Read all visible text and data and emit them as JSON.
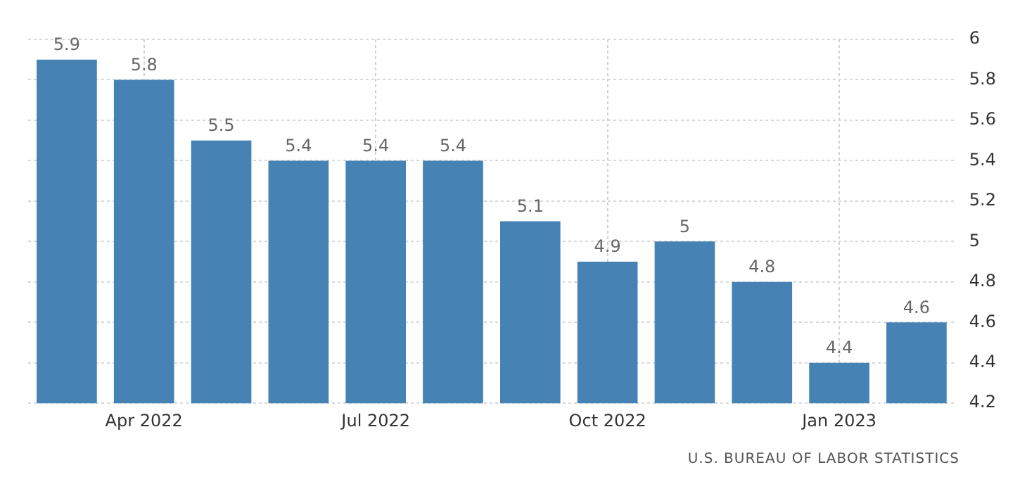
{
  "chart_data": {
    "type": "bar",
    "categories": [
      null,
      "Apr 2022",
      null,
      null,
      "Jul 2022",
      null,
      null,
      "Oct 2022",
      null,
      null,
      "Jan 2023",
      null
    ],
    "values": [
      5.9,
      5.8,
      5.5,
      5.4,
      5.4,
      5.4,
      5.1,
      4.9,
      5,
      4.8,
      4.4,
      4.6
    ],
    "color": "#4682b4",
    "ylim": [
      4.2,
      6
    ],
    "yticks": [
      4.2,
      4.4,
      4.6,
      4.8,
      5,
      5.2,
      5.4,
      5.6,
      5.8,
      6
    ],
    "grid": true,
    "data_labels": true,
    "annotations": [
      "U.S. BUREAU OF LABOR STATISTICS"
    ]
  }
}
